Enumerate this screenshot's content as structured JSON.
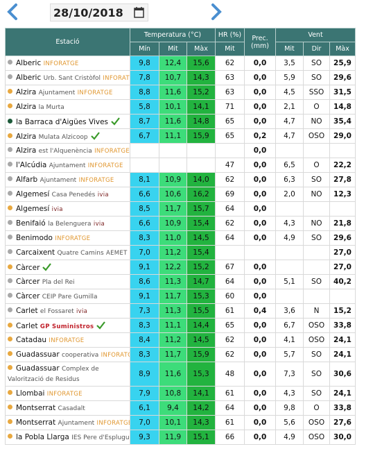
{
  "date": "28/10/2018",
  "header": {
    "station": "Estació",
    "temperature": "Temperatura (°C)",
    "humidity": "HR (%)",
    "precipitation": "Prec. (mm)",
    "wind": "Vent",
    "t_min": "Mín",
    "t_mean": "Mit",
    "t_max": "Màx",
    "h_mean": "Mit",
    "w_mean": "Mit",
    "w_dir": "Dir",
    "w_max": "Màx"
  },
  "rows": [
    {
      "name": "Alberic",
      "network": "INFORATGE",
      "network_color": "#e0962e",
      "dot": "#a8a8a8",
      "values": [
        "9,8",
        "12,4",
        "15,6",
        "62",
        "0,0",
        "3,5",
        "SO",
        "25,9"
      ]
    },
    {
      "name": "Alberic",
      "detail": "Urb. Sant Cristòfol",
      "network": "INFORATGE",
      "network_color": "#e0962e",
      "dot": "#a8a8a8",
      "values": [
        "7,8",
        "10,7",
        "14,3",
        "63",
        "0,0",
        "5,9",
        "SO",
        "29,6"
      ]
    },
    {
      "name": "Alzira",
      "detail": "Ajuntament",
      "network": "INFORATGE",
      "network_color": "#e0962e",
      "dot": "#e8a840",
      "values": [
        "8,8",
        "11,6",
        "15,2",
        "63",
        "0,0",
        "4,5",
        "SSO",
        "31,5"
      ]
    },
    {
      "name": "Alzira",
      "detail": "la Murta",
      "dot": "#e8a840",
      "values": [
        "5,8",
        "10,1",
        "14,1",
        "71",
        "0,0",
        "2,1",
        "O",
        "14,8"
      ]
    },
    {
      "name": "la Barraca d'Aigües Vives",
      "dot": "#1d5a3a",
      "check": true,
      "values": [
        "8,7",
        "11,6",
        "14,8",
        "65",
        "0,0",
        "4,7",
        "NO",
        "35,4"
      ]
    },
    {
      "name": "Alzira",
      "detail": "Mulata Alzicoop",
      "dot": "#e8a840",
      "check": true,
      "values": [
        "6,7",
        "11,1",
        "15,9",
        "65",
        "0,2",
        "4,7",
        "OSO",
        "29,0"
      ]
    },
    {
      "name": "Alzira",
      "detail": "est l'Alquenència",
      "network": "INFORATGE",
      "network_color": "#e0962e",
      "dot": "#a8a8a8",
      "values": [
        null,
        null,
        null,
        null,
        "0,0",
        null,
        null,
        null
      ]
    },
    {
      "name": "l'Alcúdia",
      "detail": "Ajuntament",
      "network": "INFORATGE",
      "network_color": "#e0962e",
      "dot": "#a8a8a8",
      "values": [
        null,
        null,
        null,
        "47",
        "0,0",
        "6,5",
        "O",
        "22,2"
      ]
    },
    {
      "name": "Alfarb",
      "detail": "Ajuntament",
      "network": "INFORATGE",
      "network_color": "#e0962e",
      "dot": "#a8a8a8",
      "values": [
        "8,1",
        "10,9",
        "14,0",
        "62",
        "0,0",
        "6,3",
        "SO",
        "27,8"
      ]
    },
    {
      "name": "Algemesí",
      "detail": "Casa Penedés",
      "network": "ivia",
      "network_color": "#7a1f1f",
      "dot": "#a8a8a8",
      "values": [
        "6,6",
        "10,6",
        "16,2",
        "69",
        "0,0",
        "2,0",
        "NO",
        "12,3"
      ]
    },
    {
      "name": "Algemesí",
      "network": "ivia",
      "network_color": "#7a1f1f",
      "dot": "#e8a840",
      "values": [
        "8,5",
        "11,7",
        "15,7",
        "64",
        "0,0",
        null,
        null,
        null
      ]
    },
    {
      "name": "Benifaió",
      "detail": "la Belenguera",
      "network": "ivia",
      "network_color": "#7a1f1f",
      "dot": "#a8a8a8",
      "values": [
        "6,6",
        "10,9",
        "15,4",
        "62",
        "0,0",
        "4,3",
        "NO",
        "21,8"
      ]
    },
    {
      "name": "Benimodo",
      "network": "INFORATGE",
      "network_color": "#e0962e",
      "dot": "#a8a8a8",
      "values": [
        "8,3",
        "11,0",
        "14,5",
        "64",
        "0,0",
        "4,9",
        "SO",
        "29,6"
      ]
    },
    {
      "name": "Carcaixent",
      "detail": "Quatre Camins",
      "network": "AEMET",
      "network_color": "#555555",
      "dot": "#a8a8a8",
      "values": [
        "7,0",
        "11,2",
        "15,4",
        null,
        null,
        null,
        null,
        "27,0"
      ]
    },
    {
      "name": "Càrcer",
      "dot": "#e8a840",
      "check": true,
      "values": [
        "9,1",
        "12,2",
        "15,2",
        "67",
        "0,0",
        null,
        null,
        "27,0"
      ]
    },
    {
      "name": "Càrcer",
      "detail": "Pla del Rei",
      "dot": "#a8a8a8",
      "values": [
        "8,6",
        "11,3",
        "14,7",
        "64",
        "0,0",
        "5,1",
        "SO",
        "40,2"
      ]
    },
    {
      "name": "Càrcer",
      "detail": "CEIP Pare Gumilla",
      "dot": "#a8a8a8",
      "values": [
        "9,1",
        "11,7",
        "15,3",
        "60",
        "0,0",
        null,
        null,
        null
      ]
    },
    {
      "name": "Carlet",
      "detail": "el Fossaret",
      "network": "ivia",
      "network_color": "#7a1f1f",
      "dot": "#a8a8a8",
      "values": [
        "7,3",
        "11,3",
        "15,5",
        "61",
        "0,4",
        "3,6",
        "N",
        "15,2"
      ]
    },
    {
      "name": "Carlet",
      "network": "GP Suministros",
      "network_color": "#c0202a",
      "dot": "#e8a840",
      "check": true,
      "values": [
        "8,3",
        "11,1",
        "14,4",
        "65",
        "0,0",
        "6,7",
        "OSO",
        "33,8"
      ]
    },
    {
      "name": "Catadau",
      "network": "INFORATGE",
      "network_color": "#e0962e",
      "dot": "#e8a840",
      "values": [
        "8,4",
        "11,2",
        "14,5",
        "62",
        "0,0",
        "4,1",
        "OSO",
        "24,1"
      ]
    },
    {
      "name": "Guadassuar",
      "detail": "cooperativa",
      "network": "INFORATGE",
      "network_color": "#e0962e",
      "dot": "#e8a840",
      "values": [
        "8,3",
        "11,7",
        "15,9",
        "62",
        "0,0",
        "5,7",
        "SO",
        "24,1"
      ]
    },
    {
      "name": "Guadassuar",
      "detail": "Complex de Valorització de Residus",
      "dot": "#e8a840",
      "values": [
        "8,9",
        "11,6",
        "15,3",
        "48",
        "0,0",
        "7,3",
        "SO",
        "30,6"
      ]
    },
    {
      "name": "Llombai",
      "network": "INFORATGE",
      "network_color": "#e0962e",
      "dot": "#e8a840",
      "values": [
        "7,9",
        "10,8",
        "14,1",
        "61",
        "0,0",
        "4,3",
        "SO",
        "24,1"
      ]
    },
    {
      "name": "Montserrat",
      "detail": "Casadalt",
      "dot": "#e8a840",
      "values": [
        "6,1",
        "9,4",
        "14,2",
        "64",
        "0,0",
        "9,8",
        "O",
        "33,8"
      ]
    },
    {
      "name": "Montserrat",
      "detail": "Ajuntament",
      "network": "INFORATGE",
      "network_color": "#e0962e",
      "dot": "#e8a840",
      "values": [
        "7,0",
        "10,1",
        "14,3",
        "61",
        "0,0",
        "5,6",
        "OSO",
        "27,6"
      ]
    },
    {
      "name": "la Pobla Llarga",
      "detail": "IES Pere d'Esplugues",
      "dot": "#e8a840",
      "values": [
        "9,3",
        "11,9",
        "15,1",
        "66",
        "0,0",
        "4,9",
        "OSO",
        "30,0"
      ]
    }
  ]
}
